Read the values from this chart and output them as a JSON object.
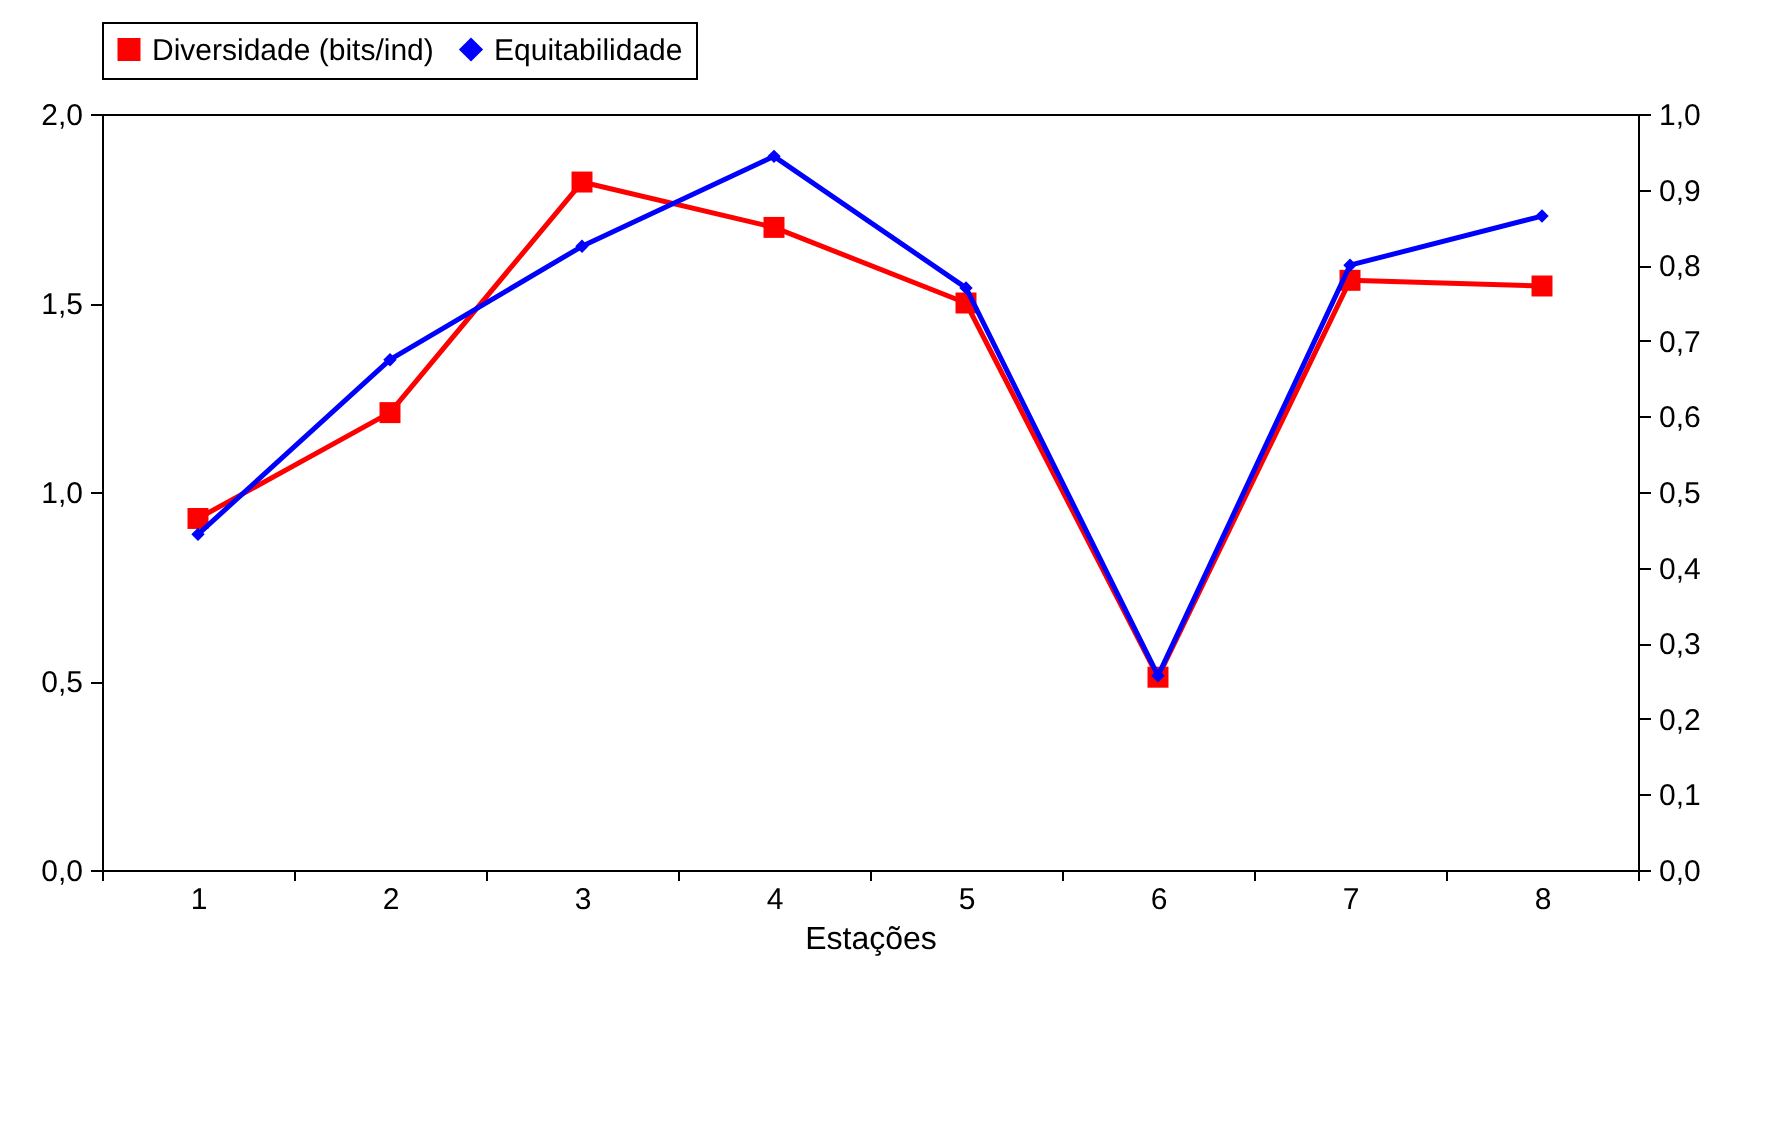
{
  "chart_data": {
    "type": "line",
    "xlabel": "Estações",
    "categories": [
      "1",
      "2",
      "3",
      "4",
      "5",
      "6",
      "7",
      "8"
    ],
    "series": [
      {
        "name": "Diversidade (bits/ind)",
        "color": "#ff0000",
        "marker": "square",
        "values": [
          0.93,
          1.21,
          1.82,
          1.7,
          1.5,
          0.51,
          1.56,
          1.545
        ]
      },
      {
        "name": "Equitabilidade",
        "color": "#0000ff",
        "marker": "diamond",
        "axis": "y2",
        "values": [
          0.444,
          0.675,
          0.825,
          0.944,
          0.77,
          0.257,
          0.8,
          0.865
        ]
      }
    ],
    "ylim": [
      0,
      2
    ],
    "yticks": [
      {
        "value": 0,
        "label": "0,0"
      },
      {
        "value": 0.5,
        "label": "0,5"
      },
      {
        "value": 1,
        "label": "1,0"
      },
      {
        "value": 1.5,
        "label": "1,5"
      },
      {
        "value": 2,
        "label": "2,0"
      }
    ],
    "y2lim": [
      0,
      1
    ],
    "y2ticks": [
      {
        "value": 0,
        "label": "0,0"
      },
      {
        "value": 0.1,
        "label": "0,1"
      },
      {
        "value": 0.2,
        "label": "0,2"
      },
      {
        "value": 0.3,
        "label": "0,3"
      },
      {
        "value": 0.4,
        "label": "0,4"
      },
      {
        "value": 0.5,
        "label": "0,5"
      },
      {
        "value": 0.6,
        "label": "0,6"
      },
      {
        "value": 0.7,
        "label": "0,7"
      },
      {
        "value": 0.8,
        "label": "0,8"
      },
      {
        "value": 0.9,
        "label": "0,9"
      },
      {
        "value": 1,
        "label": "1,0"
      }
    ],
    "legend": "top",
    "grid": false,
    "line_style": "solid"
  }
}
